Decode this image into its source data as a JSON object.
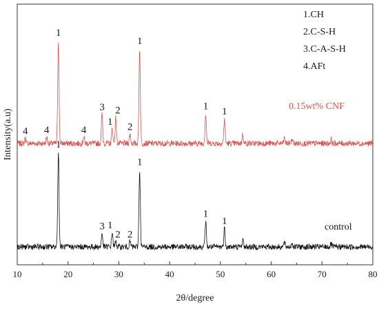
{
  "chart_data": {
    "type": "line",
    "xlabel": "2θ/degree",
    "ylabel": "Intensity(a.u)",
    "xlim": [
      10,
      80
    ],
    "xticks": [
      10,
      20,
      30,
      40,
      50,
      60,
      70,
      80
    ],
    "xtick_labels": [
      "10",
      "20",
      "30",
      "40",
      "50",
      "60",
      "70",
      "80"
    ],
    "grid": false,
    "y_axis_ticks": false,
    "legend": {
      "placement": "top-right",
      "entries": [
        "1.CH",
        "2.C-S-H",
        "3.C-A-S-H",
        "4.AFt"
      ]
    },
    "series": [
      {
        "name": "0.15wt% CNF",
        "color": "#d9534f",
        "baseline": 1.0,
        "noise": 0.035,
        "peaks": [
          {
            "x": 11.6,
            "y": 0.05,
            "label": "4"
          },
          {
            "x": 15.8,
            "y": 0.06,
            "label": "4"
          },
          {
            "x": 18.1,
            "y": 1.0,
            "label": "1"
          },
          {
            "x": 23.1,
            "y": 0.06,
            "label": "4"
          },
          {
            "x": 26.7,
            "y": 0.28,
            "label": "3"
          },
          {
            "x": 28.7,
            "y": 0.14,
            "label": "1"
          },
          {
            "x": 29.4,
            "y": 0.25,
            "label": "2"
          },
          {
            "x": 32.2,
            "y": 0.09,
            "label": "2"
          },
          {
            "x": 34.1,
            "y": 0.92,
            "label": "1"
          },
          {
            "x": 47.1,
            "y": 0.29,
            "label": "1"
          },
          {
            "x": 50.8,
            "y": 0.24,
            "label": "1"
          },
          {
            "x": 54.4,
            "y": 0.09,
            "label": ""
          },
          {
            "x": 62.6,
            "y": 0.05,
            "label": ""
          },
          {
            "x": 64.1,
            "y": 0.04,
            "label": ""
          },
          {
            "x": 71.8,
            "y": 0.04,
            "label": ""
          }
        ]
      },
      {
        "name": "control",
        "color": "#111111",
        "baseline": 0.0,
        "noise": 0.035,
        "peaks": [
          {
            "x": 18.1,
            "y": 0.92,
            "label": "1"
          },
          {
            "x": 26.7,
            "y": 0.13,
            "label": "3"
          },
          {
            "x": 28.7,
            "y": 0.14,
            "label": "1"
          },
          {
            "x": 29.4,
            "y": 0.05,
            "label": "2"
          },
          {
            "x": 32.2,
            "y": 0.05,
            "label": "2"
          },
          {
            "x": 34.1,
            "y": 0.75,
            "label": "1"
          },
          {
            "x": 47.1,
            "y": 0.25,
            "label": "1"
          },
          {
            "x": 50.8,
            "y": 0.18,
            "label": "1"
          },
          {
            "x": 54.4,
            "y": 0.07,
            "label": ""
          },
          {
            "x": 62.6,
            "y": 0.04,
            "label": ""
          },
          {
            "x": 64.1,
            "y": 0.04,
            "label": ""
          },
          {
            "x": 71.8,
            "y": 0.03,
            "label": ""
          }
        ]
      }
    ]
  }
}
